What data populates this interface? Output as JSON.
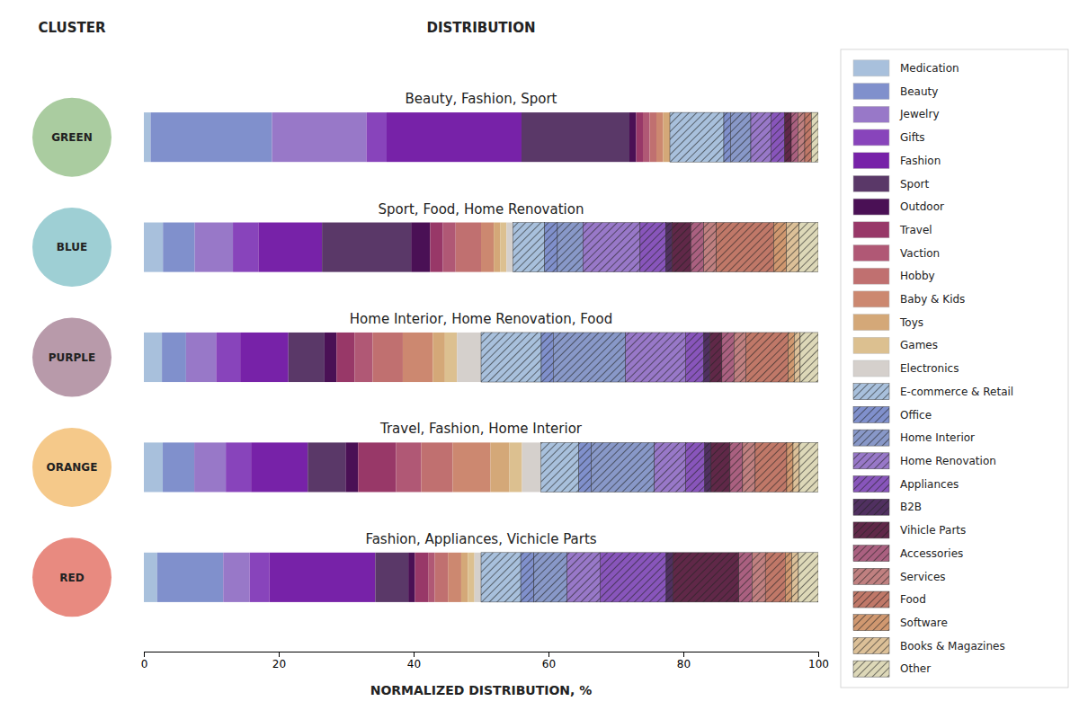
{
  "chart_data": {
    "type": "bar",
    "orientation": "horizontal",
    "stacked": true,
    "title": "DISTRIBUTION",
    "xlabel": "NORMALIZED DISTRIBUTION, %",
    "ylabel": "CLUSTER",
    "categories": [
      "GREEN",
      "BLUE",
      "PURPLE",
      "ORANGE",
      "RED"
    ],
    "colors": [
      "#aacca0",
      "#9ecfd4",
      "#b89aaa",
      "#f5c98a",
      "#e88a80"
    ],
    "annotations": [
      "Beauty, Fashion, Sport",
      "Sport, Food, Home Renovation",
      "Home Interior, Home Renovation, Food",
      "Travel, Fashion, Home Interior",
      "Fashion, Appliances, Vichicle Parts"
    ],
    "xlim": [
      0,
      100
    ],
    "xticks": [
      0,
      20,
      40,
      60,
      80,
      100
    ],
    "grid": false,
    "legend": "right",
    "series": [
      {
        "name": "Medication",
        "color": "#a8c0dc",
        "values": [
          1,
          2.830189,
          2.678571,
          2.803738,
          1.960784
        ]
      },
      {
        "name": "Beauty",
        "color": "#8090cc",
        "values": [
          18,
          4.716981,
          3.571429,
          4.672897,
          9.803922
        ]
      },
      {
        "name": "Jewelry",
        "color": "#9878c8",
        "values": [
          14,
          5.660377,
          4.464286,
          4.672897,
          3.921569
        ]
      },
      {
        "name": "Gifts",
        "color": "#8844bb",
        "values": [
          3,
          3.773585,
          3.571429,
          3.738318,
          2.941176
        ]
      },
      {
        "name": "Fashion",
        "color": "#7722a8",
        "values": [
          20,
          9.433962,
          7.142857,
          8.411215,
          15.686275
        ]
      },
      {
        "name": "Sport",
        "color": "#5a3868",
        "values": [
          16,
          13.207547,
          5.357143,
          5.607477,
          4.901961
        ]
      },
      {
        "name": "Outdoor",
        "color": "#4a1055",
        "values": [
          1,
          2.830189,
          1.785714,
          1.869159,
          0.980392
        ]
      },
      {
        "name": "Travel",
        "color": "#983868",
        "values": [
          1,
          1.886792,
          2.678571,
          5.607477,
          1.960784
        ]
      },
      {
        "name": "Vaction",
        "color": "#b05875",
        "values": [
          1,
          1.886792,
          2.678571,
          3.738318,
          0.980392
        ]
      },
      {
        "name": "Hobby",
        "color": "#c07070",
        "values": [
          1,
          3.773585,
          4.464286,
          4.672897,
          1.960784
        ]
      },
      {
        "name": "Baby & Kids",
        "color": "#cc8870",
        "values": [
          1,
          1.886792,
          4.464286,
          5.607477,
          1.960784
        ]
      },
      {
        "name": "Toys",
        "color": "#d4a878",
        "values": [
          1,
          0.943396,
          1.785714,
          2.803738,
          0.980392
        ]
      },
      {
        "name": "Games",
        "color": "#dcc090",
        "values": [
          0,
          0.943396,
          1.785714,
          1.869159,
          0.980392
        ]
      },
      {
        "name": "Electronics",
        "color": "#d5d0cc",
        "values": [
          0,
          0.943396,
          3.571429,
          2.803738,
          0.980392
        ]
      },
      {
        "name": "E-commerce & Retail",
        "color": "#a8c0dc",
        "line_style": "hatched",
        "values": [
          8,
          4.716981,
          8.928571,
          5.607477,
          5.882353
        ]
      },
      {
        "name": "Office",
        "color": "#8090cc",
        "line_style": "hatched",
        "values": [
          1,
          1.886792,
          1.785714,
          1.869159,
          1.960784
        ]
      },
      {
        "name": "Home Interior",
        "color": "#8898c8",
        "line_style": "hatched",
        "values": [
          3,
          3.773585,
          10.714286,
          9.345794,
          4.901961
        ]
      },
      {
        "name": "Home Renovation",
        "color": "#9878c8",
        "line_style": "hatched",
        "values": [
          3,
          8.490566,
          8.928571,
          4.672897,
          4.901961
        ]
      },
      {
        "name": "Appliances",
        "color": "#8855bb",
        "line_style": "hatched",
        "values": [
          2,
          3.773585,
          2.678571,
          2.803738,
          9.803922
        ]
      },
      {
        "name": "B2B",
        "color": "#503060",
        "line_style": "hatched",
        "values": [
          0,
          0.943396,
          0.892857,
          0.934579,
          0.980392
        ]
      },
      {
        "name": "Vihicle Parts",
        "color": "#602848",
        "line_style": "hatched",
        "values": [
          1,
          2.830189,
          1.785714,
          2.803738,
          9.803922
        ]
      },
      {
        "name": "Accessories",
        "color": "#aa6080",
        "line_style": "hatched",
        "values": [
          1,
          1.886792,
          1.785714,
          1.869159,
          1.960784
        ]
      },
      {
        "name": "Services",
        "color": "#c08080",
        "line_style": "hatched",
        "values": [
          1,
          1.886792,
          1.785714,
          1.869159,
          1.960784
        ]
      },
      {
        "name": "Food",
        "color": "#c07868",
        "line_style": "hatched",
        "values": [
          1,
          8.490566,
          6.25,
          4.672897,
          2.941176
        ]
      },
      {
        "name": "Software",
        "color": "#d09870",
        "line_style": "hatched",
        "values": [
          0,
          1.886792,
          0.892857,
          0.934579,
          0.980392
        ]
      },
      {
        "name": "Books & Magazines",
        "color": "#dcc098",
        "line_style": "hatched",
        "values": [
          0,
          1.886792,
          0.892857,
          0.934579,
          0.980392
        ]
      },
      {
        "name": "Other",
        "color": "#ddd8b8",
        "line_style": "hatched",
        "values": [
          1,
          2.830189,
          2.678571,
          2.803738,
          2.941176
        ]
      }
    ]
  }
}
